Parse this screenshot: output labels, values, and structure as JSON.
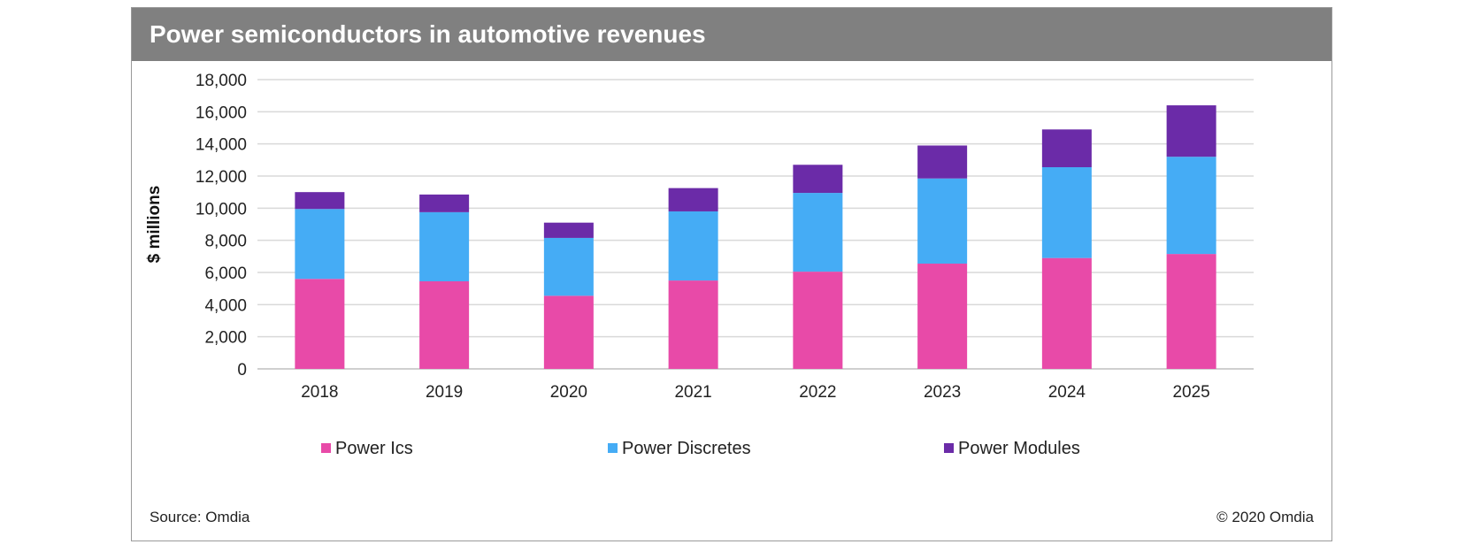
{
  "title": "Power semiconductors in automotive revenues",
  "source": "Source: Omdia",
  "copyright": "© 2020 Omdia",
  "chart_data": {
    "type": "bar",
    "stacked": true,
    "title": "Power semiconductors in automotive revenues",
    "xlabel": "",
    "ylabel": "$ millions",
    "ylim": [
      0,
      18000
    ],
    "yticks": [
      0,
      2000,
      4000,
      6000,
      8000,
      10000,
      12000,
      14000,
      16000,
      18000
    ],
    "ytick_labels": [
      "0",
      "2,000",
      "4,000",
      "6,000",
      "8,000",
      "10,000",
      "12,000",
      "14,000",
      "16,000",
      "18,000"
    ],
    "categories": [
      "2018",
      "2019",
      "2020",
      "2021",
      "2022",
      "2023",
      "2024",
      "2025"
    ],
    "series": [
      {
        "name": "Power Ics",
        "color": "#E84AA8",
        "values": [
          5600,
          5450,
          4550,
          5500,
          6050,
          6550,
          6900,
          7150
        ]
      },
      {
        "name": "Power Discretes",
        "color": "#45ACF5",
        "values": [
          4350,
          4300,
          3600,
          4300,
          4900,
          5300,
          5650,
          6050
        ]
      },
      {
        "name": "Power Modules",
        "color": "#6B2BA8",
        "values": [
          1050,
          1100,
          950,
          1450,
          1750,
          2050,
          2350,
          3200
        ]
      }
    ],
    "grid": true,
    "legend_position": "bottom"
  }
}
